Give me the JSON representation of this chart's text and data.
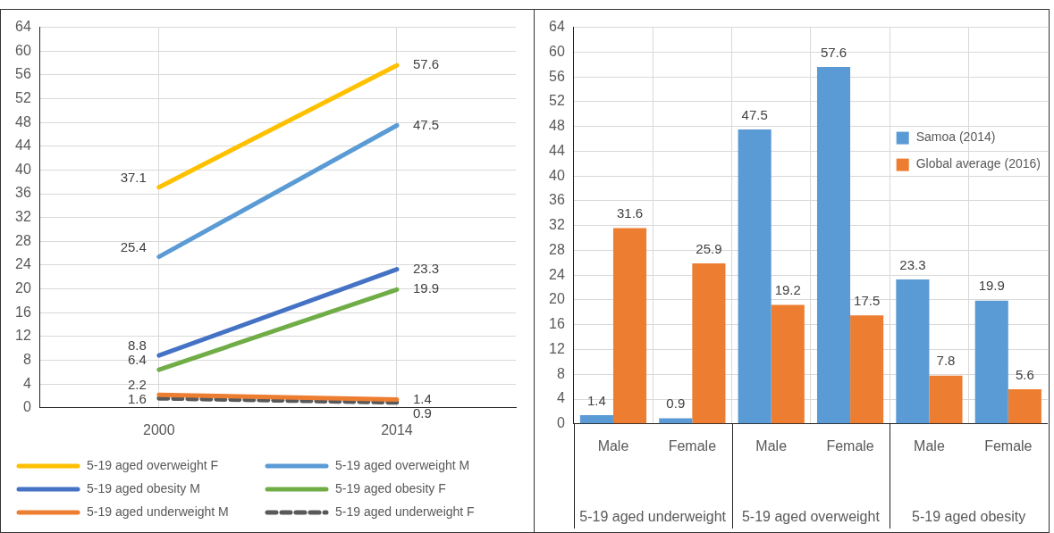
{
  "chart_data": [
    {
      "type": "line",
      "categories": [
        "2000",
        "2014"
      ],
      "ylim": [
        0,
        64
      ],
      "yticks": [
        0,
        4,
        8,
        12,
        16,
        20,
        24,
        28,
        32,
        36,
        40,
        44,
        48,
        52,
        56,
        60,
        64
      ],
      "grid": true,
      "legend": "bottom",
      "marker": "none",
      "data_labels": true,
      "series": [
        {
          "name": "5-19 aged overweight F",
          "color": "#ffc000",
          "values": [
            37.1,
            57.6
          ]
        },
        {
          "name": "5-19 aged overweight M",
          "color": "#5b9bd5",
          "values": [
            25.4,
            47.5
          ]
        },
        {
          "name": "5-19 aged obesity M",
          "color": "#4472c4",
          "values": [
            8.8,
            23.3
          ]
        },
        {
          "name": "5-19 aged obesity F",
          "color": "#70ad47",
          "values": [
            6.4,
            19.9
          ]
        },
        {
          "name": "5-19 aged underweight M",
          "color": "#ed7d31",
          "values": [
            2.2,
            1.4
          ]
        },
        {
          "name": "5-19 aged underweight F",
          "color": "#595959",
          "values": [
            1.6,
            0.9
          ],
          "line_style": "dashed"
        }
      ]
    },
    {
      "type": "bar",
      "categories": [
        "Male",
        "Female",
        "Male",
        "Female",
        "Male",
        "Female"
      ],
      "ylim": [
        0,
        64
      ],
      "yticks": [
        0,
        4,
        8,
        12,
        16,
        20,
        24,
        28,
        32,
        36,
        40,
        44,
        48,
        52,
        56,
        60,
        64
      ],
      "grid": true,
      "legend": "top right",
      "data_labels": true,
      "annotations": [
        "5-19 aged underweight",
        "5-19 aged overweight",
        "5-19 aged obesity"
      ],
      "series": [
        {
          "name": "Samoa (2014)",
          "color": "#5b9bd5",
          "values": [
            1.4,
            0.9,
            47.5,
            57.6,
            23.3,
            19.9
          ]
        },
        {
          "name": "Global average (2016)",
          "color": "#ed7d31",
          "values": [
            31.6,
            25.9,
            19.2,
            17.5,
            7.8,
            5.6
          ]
        }
      ]
    }
  ]
}
